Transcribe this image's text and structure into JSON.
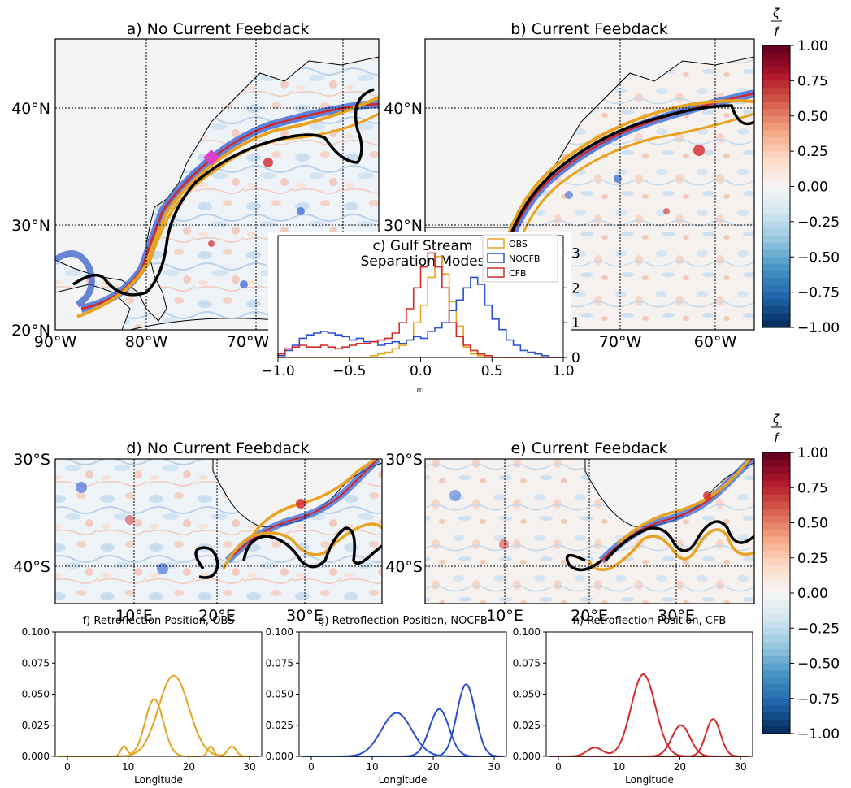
{
  "colorbar": {
    "label": "ζ/f",
    "ticks": [
      "1.00",
      "0.75",
      "0.50",
      "0.25",
      "0.00",
      "−0.25",
      "−0.50",
      "−0.75",
      "−1.00"
    ],
    "colors": [
      "#67001f",
      "#b2182b",
      "#d6604d",
      "#f4a582",
      "#fddbc7",
      "#f7f7f7",
      "#d1e5f0",
      "#92c5de",
      "#4393c3",
      "#2166ac",
      "#053061"
    ]
  },
  "maps": [
    {
      "title": "a) No Current Feebdack",
      "lat_labels": [
        "40°N",
        "30°N",
        "20°N"
      ],
      "lon_labels": [
        "90°W",
        "80°W",
        "70°W"
      ]
    },
    {
      "title": "b) Current Feebdack",
      "lat_labels": [
        "40°N",
        "30°N"
      ],
      "lon_labels": [
        "70°W",
        "60°W"
      ]
    },
    {
      "title": "d) No Current Feebdack",
      "lat_labels": [
        "30°S",
        "40°S"
      ],
      "lon_labels": [
        "10°E",
        "20°E",
        "30°E"
      ]
    },
    {
      "title": "e) Current Feebdack",
      "lat_labels": [
        "30°S",
        "40°S"
      ],
      "lon_labels": [
        "10°E",
        "20°E",
        "30°E"
      ]
    }
  ],
  "chart_data": [
    {
      "type": "histogram",
      "title": "c) Gulf Stream Separation Modes",
      "xlabel": "m",
      "ylabel": "",
      "xlim": [
        -1.0,
        1.0
      ],
      "ylim": [
        0,
        3.5
      ],
      "xticks": [
        "−1.0",
        "−0.5",
        "0.0",
        "0.5",
        "1.0"
      ],
      "yticks": [
        "0",
        "1",
        "2",
        "3"
      ],
      "legend_position": "top-right",
      "bin_edges_start": -1.0,
      "bin_width": 0.05,
      "series": [
        {
          "name": "OBS",
          "color": "#e8a321",
          "values": [
            0,
            0,
            0,
            0,
            0,
            0,
            0,
            0,
            0,
            0,
            0,
            0,
            0,
            0.05,
            0.1,
            0.15,
            0.25,
            0.35,
            0.5,
            1.0,
            1.5,
            2.3,
            2.9,
            2.4,
            1.6,
            0.9,
            0.3,
            0.1,
            0.05,
            0,
            0,
            0,
            0,
            0,
            0,
            0,
            0,
            0,
            0,
            0
          ]
        },
        {
          "name": "NOCFB",
          "color": "#2a4fd0",
          "values": [
            0.05,
            0.2,
            0.35,
            0.55,
            0.65,
            0.7,
            0.75,
            0.7,
            0.65,
            0.6,
            0.5,
            0.55,
            0.45,
            0.45,
            0.35,
            0.4,
            0.45,
            0.4,
            0.5,
            0.6,
            0.55,
            0.75,
            0.85,
            1.0,
            1.35,
            1.65,
            2.0,
            2.3,
            2.1,
            1.5,
            1.1,
            0.8,
            0.5,
            0.35,
            0.2,
            0.15,
            0.1,
            0.05,
            0,
            0
          ]
        },
        {
          "name": "CFB",
          "color": "#d42a2a",
          "values": [
            0.1,
            0.25,
            0.3,
            0.35,
            0.3,
            0.3,
            0.35,
            0.3,
            0.25,
            0.3,
            0.35,
            0.4,
            0.4,
            0.45,
            0.5,
            0.55,
            0.7,
            1.0,
            1.4,
            2.0,
            2.6,
            3.0,
            2.6,
            2.0,
            1.0,
            0.6,
            0.35,
            0.2,
            0.1,
            0.05,
            0,
            0,
            0,
            0,
            0,
            0,
            0,
            0,
            0,
            0
          ]
        }
      ]
    },
    {
      "type": "line",
      "title": "f) Retroflection Position, OBS",
      "xlabel": "Longitude",
      "ylabel": "",
      "xlim": [
        -2,
        32
      ],
      "ylim": [
        0,
        0.1
      ],
      "xticks": [
        "0",
        "10",
        "20",
        "30"
      ],
      "yticks": [
        "0.000",
        "0.025",
        "0.050",
        "0.075",
        "0.100"
      ],
      "color": "#e8a321",
      "series": [
        {
          "components": [
            {
              "mu": 9.3,
              "sigma": 0.5,
              "amp": 0.008
            },
            {
              "mu": 14.3,
              "sigma": 1.5,
              "amp": 0.046
            },
            {
              "mu": 23.6,
              "sigma": 0.5,
              "amp": 0.008
            }
          ]
        },
        {
          "components": [
            {
              "mu": 17.5,
              "sigma": 2.5,
              "amp": 0.065
            },
            {
              "mu": 27.1,
              "sigma": 0.7,
              "amp": 0.008
            }
          ]
        }
      ]
    },
    {
      "type": "line",
      "title": "g) Retroflection Position, NOCFB",
      "xlabel": "Longitude",
      "ylabel": "",
      "xlim": [
        -2,
        32
      ],
      "ylim": [
        0,
        0.1
      ],
      "xticks": [
        "0",
        "10",
        "20",
        "30"
      ],
      "yticks": [
        "0.000",
        "0.025",
        "0.050",
        "0.075",
        "0.100"
      ],
      "color": "#2a4fd0",
      "series": [
        {
          "components": [
            {
              "mu": 14.0,
              "sigma": 2.5,
              "amp": 0.035
            }
          ]
        },
        {
          "components": [
            {
              "mu": 21.0,
              "sigma": 1.6,
              "amp": 0.038
            }
          ]
        },
        {
          "components": [
            {
              "mu": 25.4,
              "sigma": 1.5,
              "amp": 0.058
            }
          ]
        }
      ]
    },
    {
      "type": "line",
      "title": "h) Retroflection Position, CFB",
      "xlabel": "Longitude",
      "ylabel": "",
      "xlim": [
        -2,
        32
      ],
      "ylim": [
        0,
        0.1
      ],
      "xticks": [
        "0",
        "10",
        "20",
        "30"
      ],
      "yticks": [
        "0.000",
        "0.025",
        "0.050",
        "0.075",
        "0.100"
      ],
      "color": "#d42a2a",
      "series": [
        {
          "components": [
            {
              "mu": 6.0,
              "sigma": 1.3,
              "amp": 0.007
            },
            {
              "mu": 14.0,
              "sigma": 2.0,
              "amp": 0.066
            }
          ]
        },
        {
          "components": [
            {
              "mu": 20.2,
              "sigma": 1.5,
              "amp": 0.025
            }
          ]
        },
        {
          "components": [
            {
              "mu": 25.5,
              "sigma": 1.2,
              "amp": 0.03
            }
          ]
        }
      ]
    }
  ]
}
